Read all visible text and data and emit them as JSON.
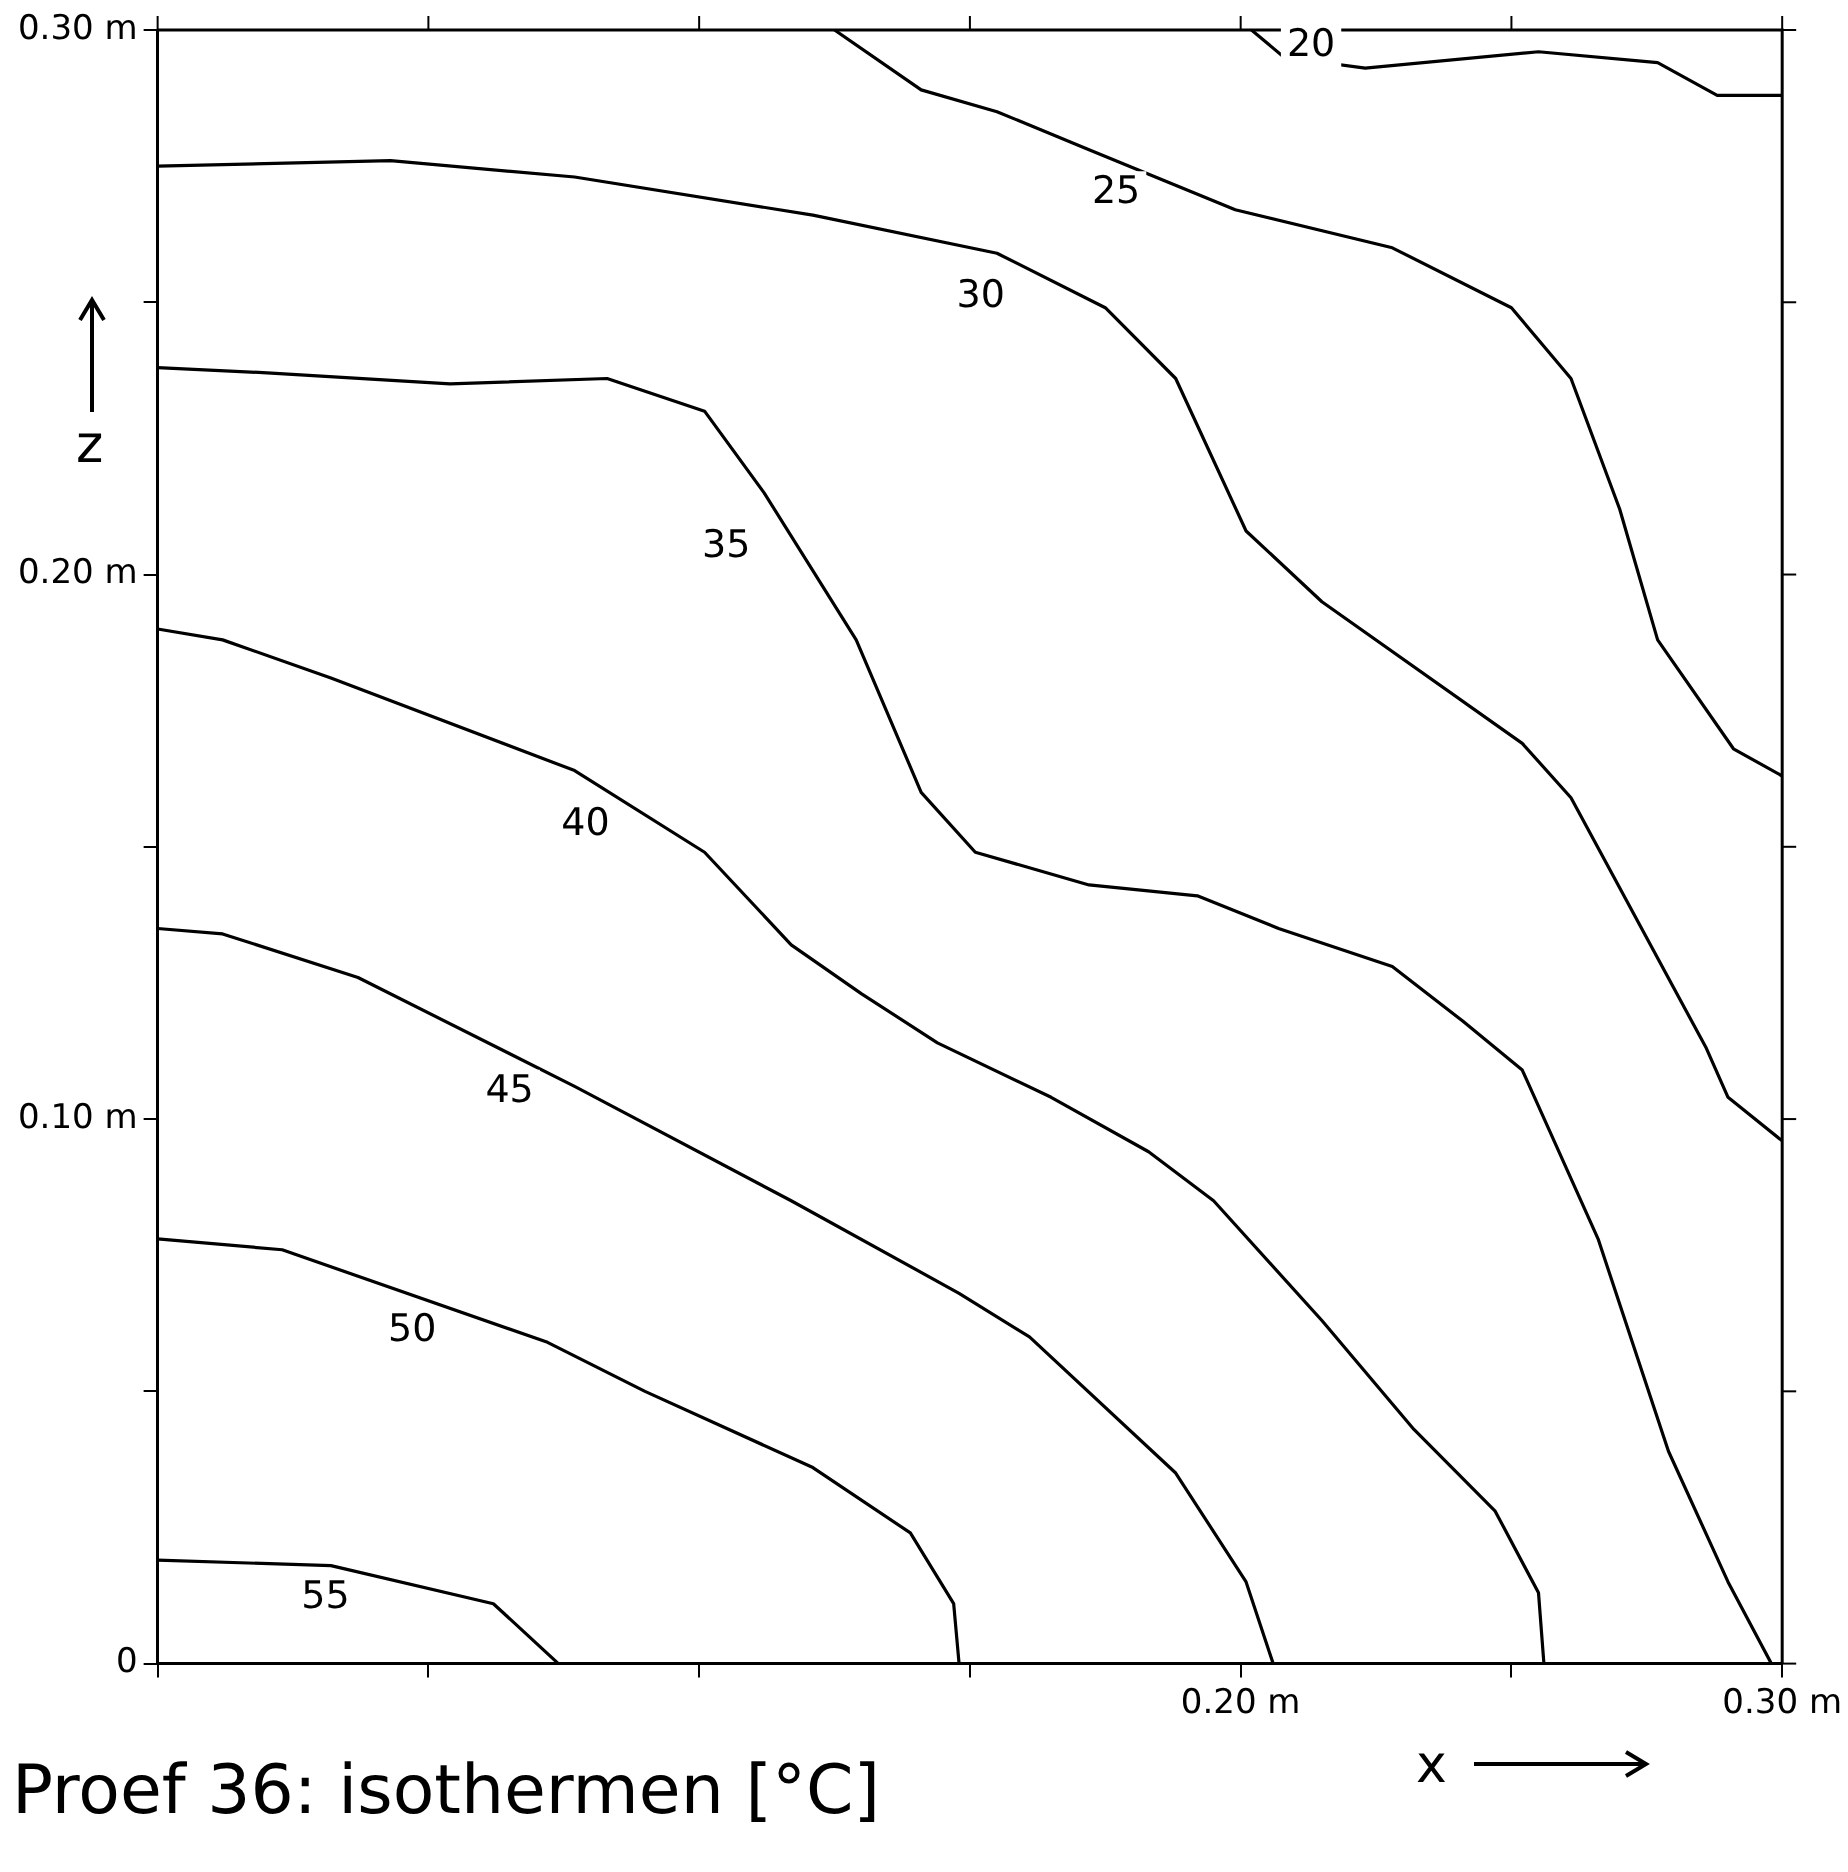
{
  "chart_data": {
    "type": "line",
    "title": "Proef 36: isothermen [°C]",
    "xlabel": "x",
    "ylabel": "z",
    "series": [
      {
        "color": "#000000",
        "x": [
          0.202,
          0.208,
          0.223,
          0.255,
          0.277,
          0.288,
          0.3
        ],
        "values": [
          0.3,
          0.295,
          0.293,
          0.296,
          0.294,
          0.288,
          0.288
        ]
      },
      {
        "color": "#000000",
        "x": [
          0.125,
          0.141,
          0.155,
          0.172,
          0.199,
          0.228,
          0.25,
          0.261,
          0.27,
          0.277,
          0.291,
          0.3
        ],
        "values": [
          0.3,
          0.289,
          0.285,
          0.278,
          0.267,
          0.26,
          0.249,
          0.236,
          0.212,
          0.188,
          0.168,
          0.163
        ]
      },
      {
        "color": "#000000",
        "x": [
          0,
          0.043,
          0.077,
          0.121,
          0.155,
          0.175,
          0.188,
          0.201,
          0.215,
          0.252,
          0.261,
          0.286,
          0.29,
          0.3
        ],
        "values": [
          0.275,
          0.276,
          0.273,
          0.266,
          0.259,
          0.249,
          0.236,
          0.208,
          0.195,
          0.169,
          0.159,
          0.113,
          0.104,
          0.096
        ]
      },
      {
        "color": "#000000",
        "x": [
          0,
          0.021,
          0.054,
          0.083,
          0.101,
          0.112,
          0.129,
          0.141,
          0.151,
          0.172,
          0.192,
          0.207,
          0.228,
          0.241,
          0.252,
          0.266,
          0.279,
          0.29,
          0.298
        ],
        "values": [
          0.238,
          0.237,
          0.235,
          0.236,
          0.23,
          0.215,
          0.188,
          0.16,
          0.149,
          0.143,
          0.141,
          0.135,
          0.128,
          0.118,
          0.109,
          0.078,
          0.039,
          0.015,
          0
        ]
      },
      {
        "color": "#000000",
        "x": [
          0,
          0.012,
          0.032,
          0.077,
          0.101,
          0.117,
          0.13,
          0.144,
          0.165,
          0.183,
          0.195,
          0.215,
          0.232,
          0.247,
          0.255,
          0.256
        ],
        "values": [
          0.19,
          0.188,
          0.181,
          0.164,
          0.149,
          0.132,
          0.123,
          0.114,
          0.104,
          0.094,
          0.085,
          0.063,
          0.043,
          0.028,
          0.013,
          0
        ]
      },
      {
        "color": "#000000",
        "x": [
          0,
          0.012,
          0.037,
          0.077,
          0.117,
          0.148,
          0.161,
          0.188,
          0.201,
          0.206
        ],
        "values": [
          0.135,
          0.134,
          0.126,
          0.106,
          0.085,
          0.068,
          0.06,
          0.035,
          0.015,
          0
        ]
      },
      {
        "color": "#000000",
        "x": [
          0,
          0.023,
          0.072,
          0.09,
          0.121,
          0.139,
          0.147,
          0.148
        ],
        "values": [
          0.078,
          0.076,
          0.059,
          0.05,
          0.036,
          0.024,
          0.011,
          0
        ]
      },
      {
        "color": "#000000",
        "x": [
          0,
          0.032,
          0.062,
          0.074
        ],
        "values": [
          0.019,
          0.018,
          0.011,
          0
        ]
      }
    ],
    "annotations": [
      {
        "text": "20",
        "x": 0.213,
        "y": 0.297
      },
      {
        "text": "25",
        "x": 0.177,
        "y": 0.27
      },
      {
        "text": "30",
        "x": 0.152,
        "y": 0.251
      },
      {
        "text": "35",
        "x": 0.105,
        "y": 0.205
      },
      {
        "text": "40",
        "x": 0.079,
        "y": 0.154
      },
      {
        "text": "45",
        "x": 0.065,
        "y": 0.105
      },
      {
        "text": "50",
        "x": 0.047,
        "y": 0.061
      },
      {
        "text": "55",
        "x": 0.031,
        "y": 0.012
      }
    ],
    "xlim": [
      0,
      0.3
    ],
    "ylim": [
      0,
      0.3
    ],
    "xticks": [
      {
        "value": 0,
        "label": null
      },
      {
        "value": 0.05,
        "label": null
      },
      {
        "value": 0.1,
        "label": null
      },
      {
        "value": 0.15,
        "label": null
      },
      {
        "value": 0.2,
        "label": "0.20 m"
      },
      {
        "value": 0.25,
        "label": null
      },
      {
        "value": 0.3,
        "label": "0.30 m"
      }
    ],
    "yticks": [
      {
        "value": 0,
        "label": "0"
      },
      {
        "value": 0.05,
        "label": null
      },
      {
        "value": 0.1,
        "label": "0.10 m"
      },
      {
        "value": 0.15,
        "label": null
      },
      {
        "value": 0.2,
        "label": "0.20 m"
      },
      {
        "value": 0.25,
        "label": null
      },
      {
        "value": 0.3,
        "label": "0.30 m"
      }
    ],
    "grid": false,
    "legend": false,
    "marker": "none",
    "line_style": "solid"
  }
}
